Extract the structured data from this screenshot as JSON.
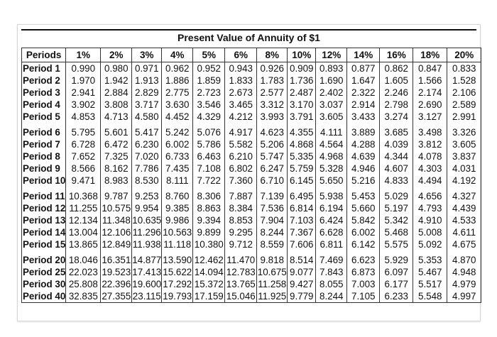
{
  "title": "Present Value of Annuity of $1",
  "table": {
    "headers": [
      "Periods",
      "1%",
      "2%",
      "3%",
      "4%",
      "5%",
      "6%",
      "8%",
      "10%",
      "12%",
      "14%",
      "16%",
      "18%",
      "20%"
    ],
    "rows": [
      {
        "label": "Period 1",
        "values": [
          "0.990",
          "0.980",
          "0.971",
          "0.962",
          "0.952",
          "0.943",
          "0.926",
          "0.909",
          "0.893",
          "0.877",
          "0.862",
          "0.847",
          "0.833"
        ]
      },
      {
        "label": "Period 2",
        "values": [
          "1.970",
          "1.942",
          "1.913",
          "1.886",
          "1.859",
          "1.833",
          "1.783",
          "1.736",
          "1.690",
          "1.647",
          "1.605",
          "1.566",
          "1.528"
        ]
      },
      {
        "label": "Period 3",
        "values": [
          "2.941",
          "2.884",
          "2.829",
          "2.775",
          "2.723",
          "2.673",
          "2.577",
          "2.487",
          "2.402",
          "2.322",
          "2.246",
          "2.174",
          "2.106"
        ]
      },
      {
        "label": "Period 4",
        "values": [
          "3.902",
          "3.808",
          "3.717",
          "3.630",
          "3.546",
          "3.465",
          "3.312",
          "3.170",
          "3.037",
          "2.914",
          "2.798",
          "2.690",
          "2.589"
        ]
      },
      {
        "label": "Period 5",
        "values": [
          "4.853",
          "4.713",
          "4.580",
          "4.452",
          "4.329",
          "4.212",
          "3.993",
          "3.791",
          "3.605",
          "3.433",
          "3.274",
          "3.127",
          "2.991"
        ]
      },
      {
        "label": "Period 6",
        "values": [
          "5.795",
          "5.601",
          "5.417",
          "5.242",
          "5.076",
          "4.917",
          "4.623",
          "4.355",
          "4.111",
          "3.889",
          "3.685",
          "3.498",
          "3.326"
        ]
      },
      {
        "label": "Period 7",
        "values": [
          "6.728",
          "6.472",
          "6.230",
          "6.002",
          "5.786",
          "5.582",
          "5.206",
          "4.868",
          "4.564",
          "4.288",
          "4.039",
          "3.812",
          "3.605"
        ]
      },
      {
        "label": "Period 8",
        "values": [
          "7.652",
          "7.325",
          "7.020",
          "6.733",
          "6.463",
          "6.210",
          "5.747",
          "5.335",
          "4.968",
          "4.639",
          "4.344",
          "4.078",
          "3.837"
        ]
      },
      {
        "label": "Period 9",
        "values": [
          "8.566",
          "8.162",
          "7.786",
          "7.435",
          "7.108",
          "6.802",
          "6.247",
          "5.759",
          "5.328",
          "4.946",
          "4.607",
          "4.303",
          "4.031"
        ]
      },
      {
        "label": "Period 10",
        "values": [
          "9.471",
          "8.983",
          "8.530",
          "8.111",
          "7.722",
          "7.360",
          "6.710",
          "6.145",
          "5.650",
          "5.216",
          "4.833",
          "4.494",
          "4.192"
        ]
      },
      {
        "label": "Period 11",
        "values": [
          "10.368",
          "9.787",
          "9.253",
          "8.760",
          "8.306",
          "7.887",
          "7.139",
          "6.495",
          "5.938",
          "5.453",
          "5.029",
          "4.656",
          "4.327"
        ]
      },
      {
        "label": "Period 12",
        "values": [
          "11.255",
          "10.575",
          "9.954",
          "9.385",
          "8.863",
          "8.384",
          "7.536",
          "6.814",
          "6.194",
          "5.660",
          "5.197",
          "4.793",
          "4.439"
        ]
      },
      {
        "label": "Period 13",
        "values": [
          "12.134",
          "11.348",
          "10.635",
          "9.986",
          "9.394",
          "8.853",
          "7.904",
          "7.103",
          "6.424",
          "5.842",
          "5.342",
          "4.910",
          "4.533"
        ]
      },
      {
        "label": "Period 14",
        "values": [
          "13.004",
          "12.106",
          "11.296",
          "10.563",
          "9.899",
          "9.295",
          "8.244",
          "7.367",
          "6.628",
          "6.002",
          "5.468",
          "5.008",
          "4.611"
        ]
      },
      {
        "label": "Period 15",
        "values": [
          "13.865",
          "12.849",
          "11.938",
          "11.118",
          "10.380",
          "9.712",
          "8.559",
          "7.606",
          "6.811",
          "6.142",
          "5.575",
          "5.092",
          "4.675"
        ]
      },
      {
        "label": "Period 20",
        "values": [
          "18.046",
          "16.351",
          "14.877",
          "13.590",
          "12.462",
          "11.470",
          "9.818",
          "8.514",
          "7.469",
          "6.623",
          "5.929",
          "5.353",
          "4.870"
        ]
      },
      {
        "label": "Period 25",
        "values": [
          "22.023",
          "19.523",
          "17.413",
          "15.622",
          "14.094",
          "12.783",
          "10.675",
          "9.077",
          "7.843",
          "6.873",
          "6.097",
          "5.467",
          "4.948"
        ]
      },
      {
        "label": "Period 30",
        "values": [
          "25.808",
          "22.396",
          "19.600",
          "17.292",
          "15.372",
          "13.765",
          "11.258",
          "9.427",
          "8.055",
          "7.003",
          "6.177",
          "5.517",
          "4.979"
        ]
      },
      {
        "label": "Period 40",
        "values": [
          "32.835",
          "27.355",
          "23.115",
          "19.793",
          "17.159",
          "15.046",
          "11.925",
          "9.779",
          "8.244",
          "7.105",
          "6.233",
          "5.548",
          "4.997"
        ]
      }
    ]
  }
}
